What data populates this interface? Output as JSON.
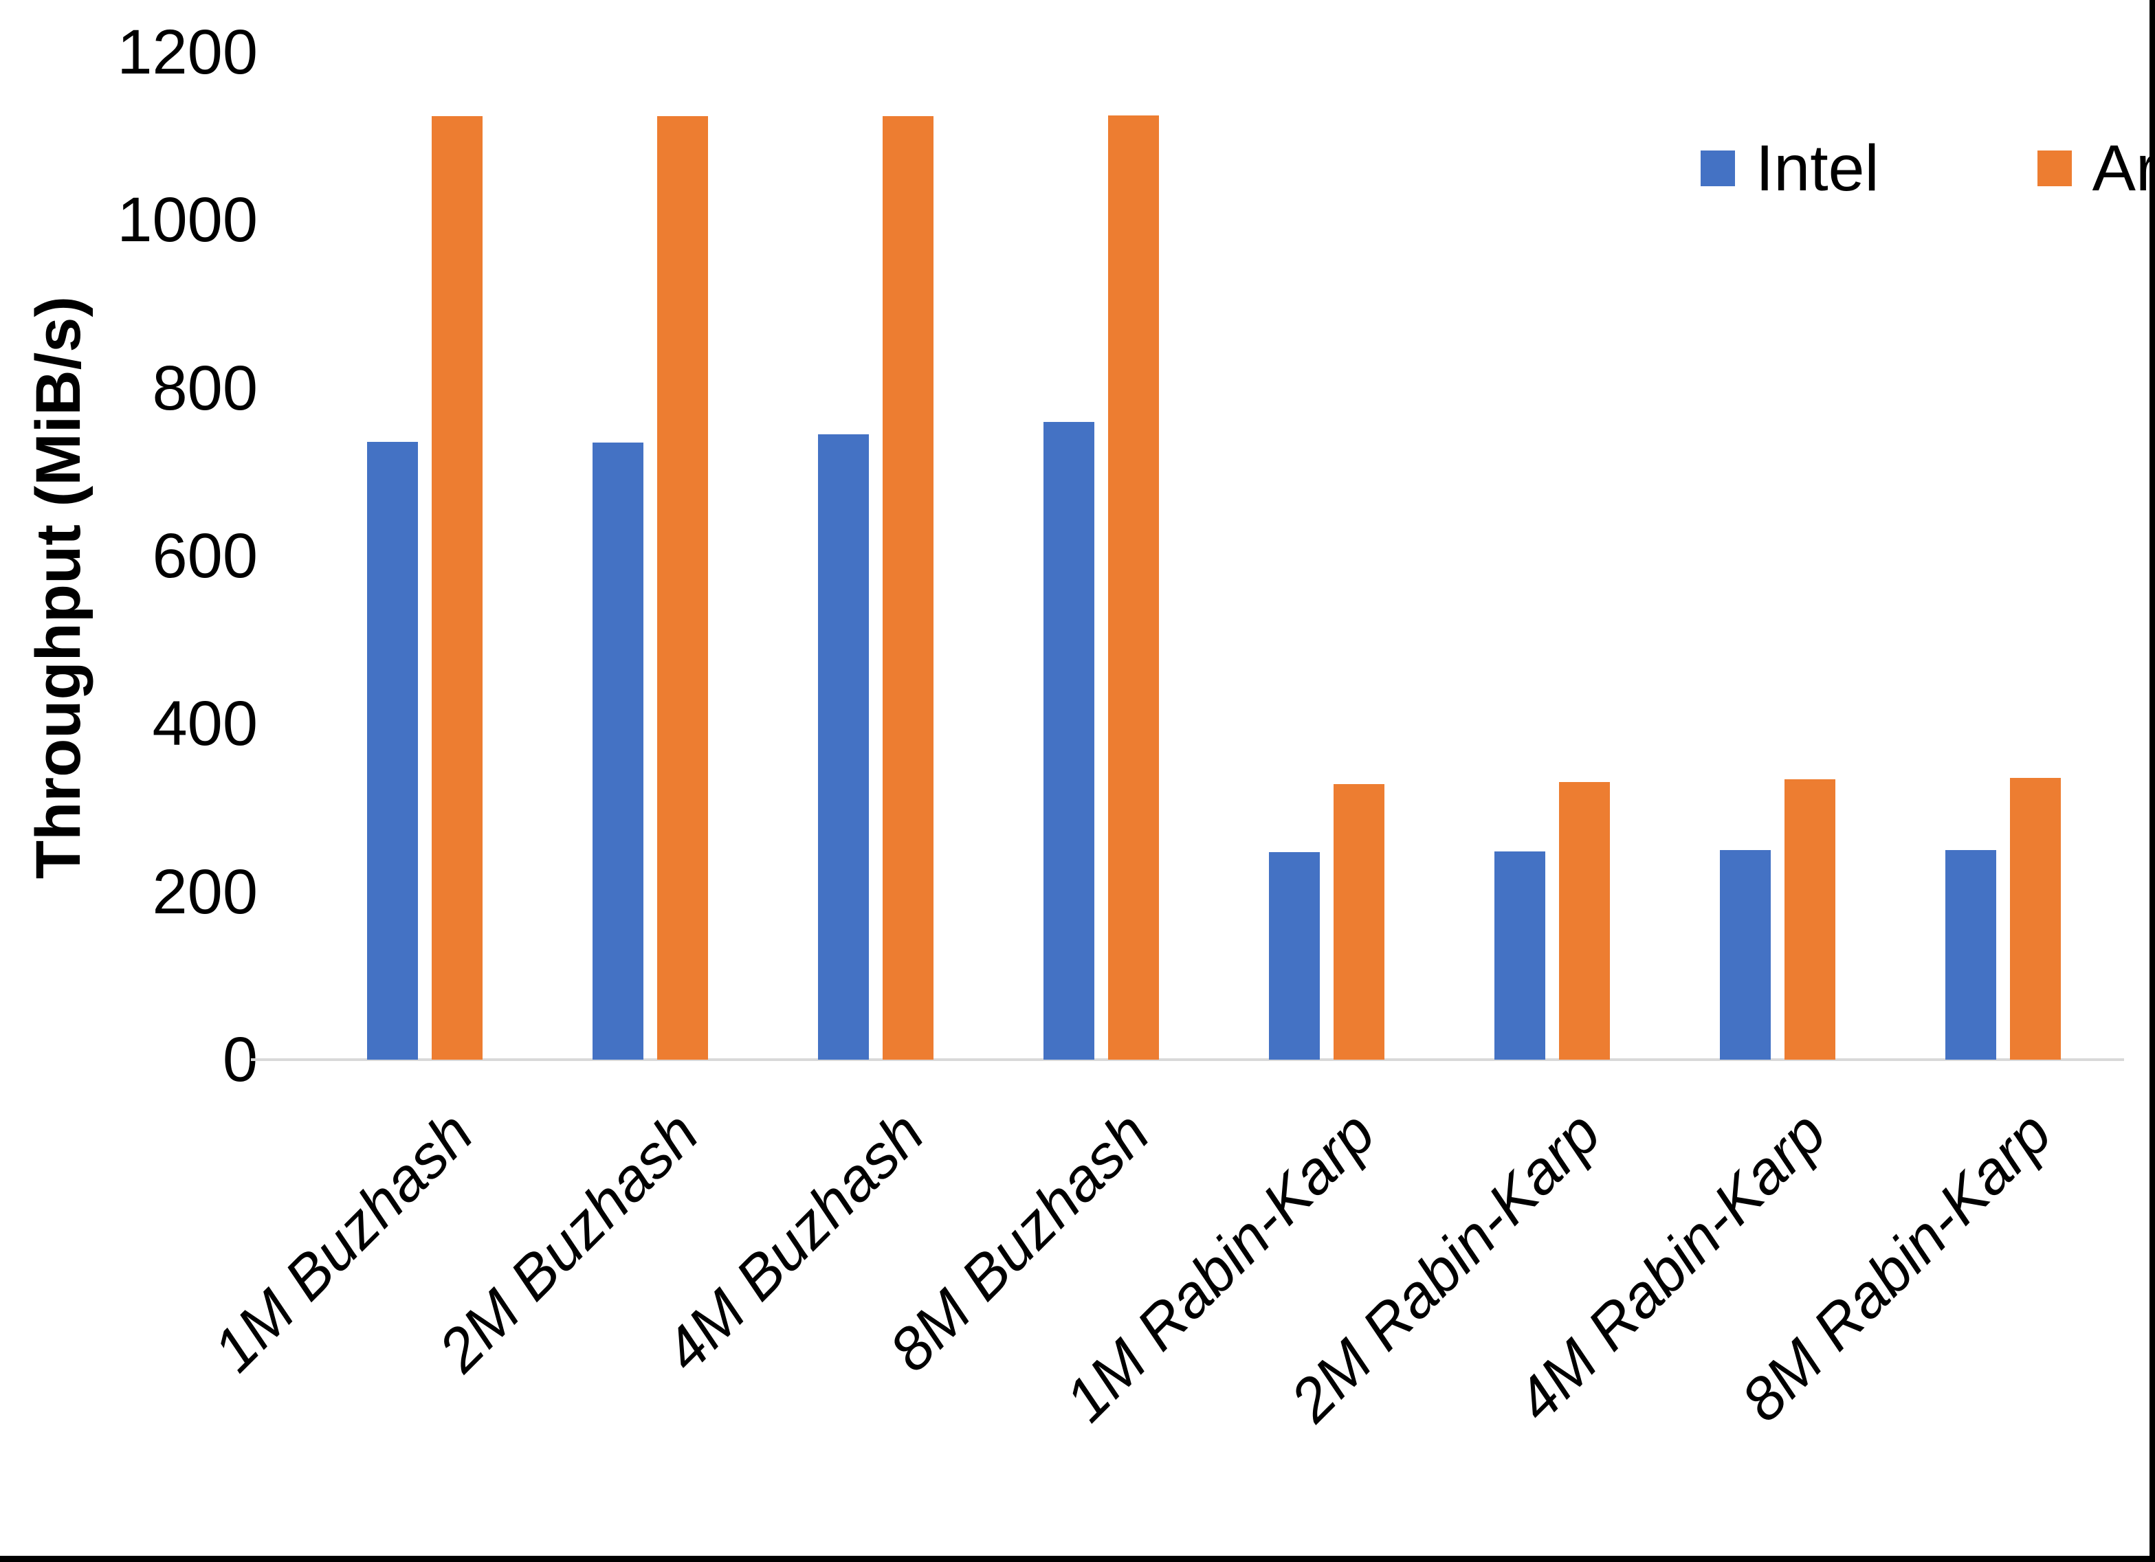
{
  "chart_data": {
    "type": "bar",
    "title": "",
    "ylabel": "Throughput (MiB/s)",
    "xlabel": "",
    "ylim": [
      0,
      1200
    ],
    "yticks": [
      0,
      200,
      400,
      600,
      800,
      1000,
      1200
    ],
    "grid": false,
    "legend_position": "top-right",
    "categories": [
      "1M Buzhash",
      "2M Buzhash",
      "4M Buzhash",
      "8M Buzhash",
      "1M Rabin-Karp",
      "2M Rabin-Karp",
      "4M Rabin-Karp",
      "8M Rabin-Karp"
    ],
    "series": [
      {
        "name": "Intel",
        "color": "#4472C4",
        "values": [
          736,
          735,
          745,
          760,
          247,
          248,
          250,
          250
        ]
      },
      {
        "name": "Arm",
        "color": "#ED7D31",
        "values": [
          1124,
          1124,
          1124,
          1125,
          328,
          331,
          334,
          336
        ]
      }
    ]
  },
  "colors": {
    "axis_line": "#d9d9d9",
    "text": "#000000",
    "background": "#ffffff"
  }
}
